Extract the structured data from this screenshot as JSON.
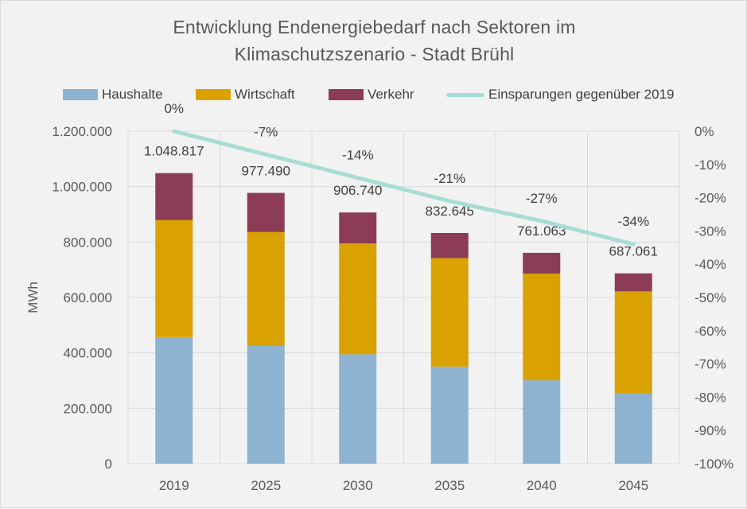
{
  "chart_data": {
    "type": "bar",
    "title_line1": "Entwicklung Endenergiebedarf nach Sektoren im",
    "title_line2": "Klimaschutzszenario - Stadt Brühl",
    "ylabel": "MWh",
    "categories": [
      "2019",
      "2025",
      "2030",
      "2035",
      "2040",
      "2045"
    ],
    "series": [
      {
        "name": "Haushalte",
        "values": [
          457000,
          425000,
          395000,
          350000,
          301000,
          254000
        ],
        "color": "#8db3d0"
      },
      {
        "name": "Wirtschaft",
        "values": [
          422000,
          411000,
          400000,
          392000,
          385000,
          368000
        ],
        "color": "#d9a200"
      },
      {
        "name": "Verkehr",
        "values": [
          169817,
          141490,
          111740,
          90645,
          75063,
          65061
        ],
        "color": "#8c3d55"
      }
    ],
    "totals": [
      "1.048.817",
      "977.490",
      "906.740",
      "832.645",
      "761.063",
      "687.061"
    ],
    "line_series": {
      "name": "Einsparungen gegenüber 2019",
      "values": [
        0,
        -7,
        -14,
        -21,
        -27,
        -34
      ],
      "labels": [
        "0%",
        "-7%",
        "-14%",
        "-21%",
        "-27%",
        "-34%"
      ],
      "color": "#a8ddd4"
    },
    "y_left": {
      "min": 0,
      "max": 1200000,
      "ticks": [
        0,
        200000,
        400000,
        600000,
        800000,
        1000000,
        1200000
      ],
      "tick_labels": [
        "0",
        "200.000",
        "400.000",
        "600.000",
        "800.000",
        "1.000.000",
        "1.200.000"
      ]
    },
    "y_right": {
      "min": -100,
      "max": 0,
      "ticks": [
        0,
        -10,
        -20,
        -30,
        -40,
        -50,
        -60,
        -70,
        -80,
        -90,
        -100
      ],
      "tick_labels": [
        "0%",
        "-10%",
        "-20%",
        "-30%",
        "-40%",
        "-50%",
        "-60%",
        "-70%",
        "-80%",
        "-90%",
        "-100%"
      ]
    },
    "grid": true,
    "legend_position": "top"
  }
}
